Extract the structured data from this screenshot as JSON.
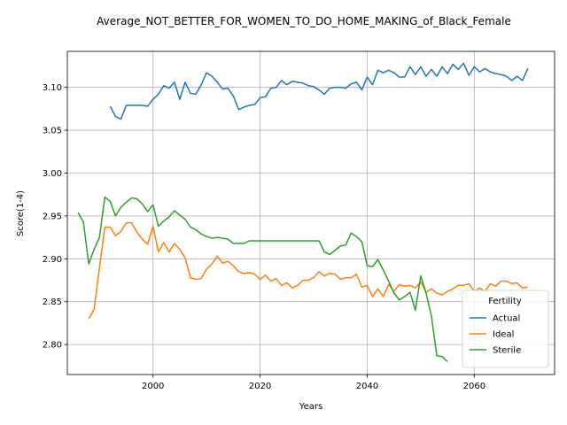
{
  "chart_data": {
    "type": "line",
    "title": "Average_NOT_BETTER_FOR_WOMEN_TO_DO_HOME_MAKING_of_Black_Female",
    "xlabel": "Years",
    "ylabel": "Score(1-4)",
    "xlim": [
      1984,
      2075
    ],
    "ylim": [
      2.765,
      3.142
    ],
    "xticks": [
      2000,
      2020,
      2040,
      2060
    ],
    "yticks": [
      2.8,
      2.85,
      2.9,
      2.95,
      3.0,
      3.05,
      3.1
    ],
    "grid": true,
    "legend": {
      "title": "Fertility",
      "placement": "lower-right"
    },
    "series": [
      {
        "name": "Actual",
        "color": "#1f77b4",
        "x": [
          1992,
          1993,
          1994,
          1995,
          1996,
          1997,
          1998,
          1999,
          2000,
          2001,
          2002,
          2003,
          2004,
          2005,
          2006,
          2007,
          2008,
          2009,
          2010,
          2011,
          2012,
          2013,
          2014,
          2015,
          2016,
          2017,
          2018,
          2019,
          2020,
          2021,
          2022,
          2023,
          2024,
          2025,
          2026,
          2027,
          2028,
          2029,
          2030,
          2031,
          2032,
          2033,
          2034,
          2035,
          2036,
          2037,
          2038,
          2039,
          2040,
          2041,
          2042,
          2043,
          2044,
          2045,
          2046,
          2047,
          2048,
          2049,
          2050,
          2051,
          2052,
          2053,
          2054,
          2055,
          2056,
          2057,
          2058,
          2059,
          2060,
          2061,
          2062,
          2063,
          2064,
          2065,
          2066,
          2067,
          2068,
          2069,
          2070
        ],
        "y": [
          3.078,
          3.066,
          3.063,
          3.079,
          3.079,
          3.079,
          3.079,
          3.078,
          3.086,
          3.092,
          3.102,
          3.099,
          3.106,
          3.086,
          3.106,
          3.093,
          3.092,
          3.103,
          3.117,
          3.113,
          3.106,
          3.098,
          3.099,
          3.09,
          3.074,
          3.077,
          3.079,
          3.08,
          3.088,
          3.089,
          3.099,
          3.1,
          3.108,
          3.103,
          3.107,
          3.106,
          3.105,
          3.102,
          3.101,
          3.097,
          3.092,
          3.099,
          3.1,
          3.1,
          3.099,
          3.104,
          3.106,
          3.097,
          3.112,
          3.103,
          3.12,
          3.117,
          3.12,
          3.117,
          3.112,
          3.112,
          3.124,
          3.115,
          3.124,
          3.113,
          3.121,
          3.113,
          3.124,
          3.116,
          3.127,
          3.121,
          3.128,
          3.114,
          3.124,
          3.118,
          3.122,
          3.118,
          3.116,
          3.115,
          3.113,
          3.108,
          3.113,
          3.108,
          3.122
        ]
      },
      {
        "name": "Ideal",
        "color": "#ff7f0e",
        "x": [
          1988,
          1989,
          1990,
          1991,
          1992,
          1993,
          1994,
          1995,
          1996,
          1997,
          1998,
          1999,
          2000,
          2001,
          2002,
          2003,
          2004,
          2005,
          2006,
          2007,
          2008,
          2009,
          2010,
          2011,
          2012,
          2013,
          2014,
          2015,
          2016,
          2017,
          2018,
          2019,
          2020,
          2021,
          2022,
          2023,
          2024,
          2025,
          2026,
          2027,
          2028,
          2029,
          2030,
          2031,
          2032,
          2033,
          2034,
          2035,
          2036,
          2037,
          2038,
          2039,
          2040,
          2041,
          2042,
          2043,
          2044,
          2045,
          2046,
          2047,
          2048,
          2049,
          2050,
          2051,
          2052,
          2053,
          2054,
          2055,
          2056,
          2057,
          2058,
          2059,
          2060,
          2061,
          2062,
          2063,
          2064,
          2065,
          2066,
          2067,
          2068,
          2069,
          2070
        ],
        "y": [
          2.83,
          2.841,
          2.89,
          2.937,
          2.937,
          2.927,
          2.932,
          2.942,
          2.942,
          2.931,
          2.923,
          2.917,
          2.938,
          2.908,
          2.919,
          2.908,
          2.918,
          2.911,
          2.901,
          2.878,
          2.876,
          2.877,
          2.888,
          2.894,
          2.903,
          2.895,
          2.897,
          2.892,
          2.885,
          2.883,
          2.884,
          2.882,
          2.876,
          2.881,
          2.874,
          2.877,
          2.869,
          2.872,
          2.866,
          2.869,
          2.875,
          2.875,
          2.878,
          2.885,
          2.88,
          2.883,
          2.882,
          2.876,
          2.878,
          2.878,
          2.882,
          2.867,
          2.869,
          2.856,
          2.865,
          2.856,
          2.87,
          2.862,
          2.87,
          2.868,
          2.869,
          2.866,
          2.873,
          2.861,
          2.865,
          2.86,
          2.858,
          2.862,
          2.865,
          2.869,
          2.869,
          2.871,
          2.862,
          2.866,
          2.862,
          2.871,
          2.868,
          2.874,
          2.874,
          2.871,
          2.872,
          2.866,
          2.867
        ]
      },
      {
        "name": "Sterile",
        "color": "#2ca02c",
        "x": [
          1986,
          1987,
          1988,
          1989,
          1990,
          1991,
          1992,
          1993,
          1994,
          1995,
          1996,
          1997,
          1998,
          1999,
          2000,
          2001,
          2002,
          2003,
          2004,
          2005,
          2006,
          2007,
          2008,
          2009,
          2010,
          2011,
          2012,
          2013,
          2014,
          2015,
          2016,
          2017,
          2018,
          2019,
          2020,
          2021,
          2022,
          2023,
          2024,
          2025,
          2026,
          2027,
          2028,
          2029,
          2030,
          2031,
          2032,
          2033,
          2034,
          2035,
          2036,
          2037,
          2038,
          2039,
          2040,
          2041,
          2042,
          2043,
          2044,
          2045,
          2046,
          2047,
          2048,
          2049,
          2050,
          2051,
          2052,
          2053,
          2054,
          2055
        ],
        "y": [
          2.954,
          2.943,
          2.894,
          2.911,
          2.925,
          2.972,
          2.967,
          2.95,
          2.96,
          2.966,
          2.971,
          2.97,
          2.964,
          2.955,
          2.963,
          2.938,
          2.944,
          2.949,
          2.956,
          2.951,
          2.946,
          2.937,
          2.934,
          2.929,
          2.926,
          2.924,
          2.925,
          2.924,
          2.923,
          2.918,
          2.918,
          2.918,
          2.921,
          2.921,
          2.921,
          2.921,
          2.921,
          2.921,
          2.921,
          2.921,
          2.921,
          2.921,
          2.921,
          2.921,
          2.921,
          2.921,
          2.908,
          2.905,
          2.91,
          2.915,
          2.916,
          2.93,
          2.926,
          2.92,
          2.892,
          2.891,
          2.899,
          2.887,
          2.874,
          2.86,
          2.852,
          2.856,
          2.861,
          2.84,
          2.88,
          2.86,
          2.833,
          2.787,
          2.786,
          2.78
        ]
      }
    ]
  }
}
